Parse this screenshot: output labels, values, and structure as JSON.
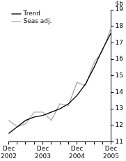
{
  "chart_data": {
    "type": "line",
    "y_label": "$b",
    "categories": [
      "Dec 2002",
      null,
      null,
      null,
      "Dec 2003",
      null,
      null,
      null,
      "Dec 2004",
      null,
      null,
      null,
      "Dec 2005"
    ],
    "series": [
      {
        "name": "Trend",
        "color": "#000000",
        "values": [
          11.5,
          11.9,
          12.3,
          12.5,
          12.6,
          12.8,
          13.0,
          13.3,
          13.8,
          14.5,
          15.5,
          16.6,
          17.6
        ]
      },
      {
        "name": "Seas adj.",
        "color": "#aaaaaa",
        "values": [
          12.3,
          11.9,
          12.1,
          12.8,
          12.8,
          12.3,
          13.3,
          13.2,
          14.6,
          14.4,
          15.8,
          16.5,
          17.9
        ]
      }
    ],
    "ylim": [
      11,
      19
    ],
    "yticks": [
      11,
      12,
      13,
      14,
      15,
      16,
      17,
      18,
      19
    ],
    "grid": false,
    "legend": "upper left"
  }
}
